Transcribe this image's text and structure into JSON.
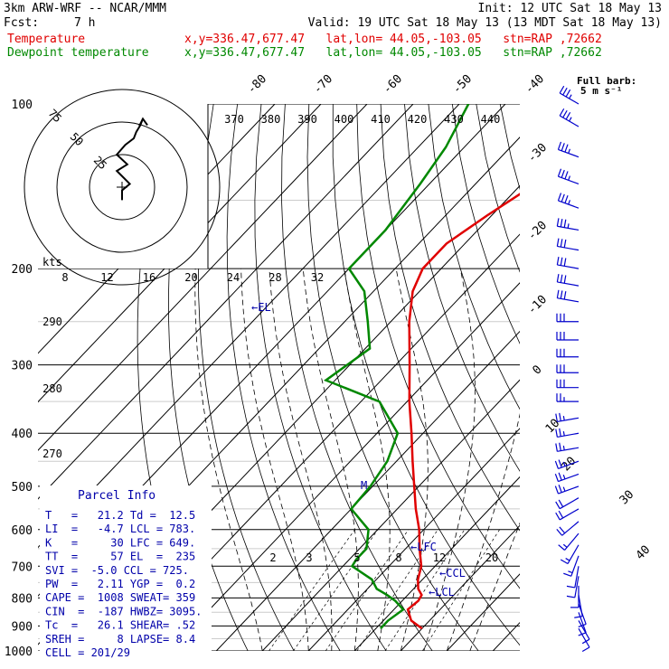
{
  "header": {
    "model": "3km ARW-WRF -- NCAR/MMM",
    "init": "Init: 12 UTC Sat 18 May 13",
    "fcst_label": "Fcst:",
    "fcst_value": "7 h",
    "valid": "Valid: 19 UTC Sat 18 May 13 (13 MDT Sat 18 May 13)",
    "temp_label": "Temperature",
    "dew_label": "Dewpoint temperature",
    "location": "x,y=336.47,677.47   lat,lon= 44.05,-103.05   stn=RAP ,72662"
  },
  "colors": {
    "temperature": "#e00000",
    "dewpoint": "#008800",
    "annot": "#0000aa",
    "barb": "#0000cc",
    "grid": "#000000"
  },
  "barb_legend": {
    "line1": "Full barb:",
    "line2": "5 m s⁻¹"
  },
  "hodo": {
    "kts_label": "kts",
    "ring_labels": [
      "25",
      "50",
      "75"
    ]
  },
  "annotations": {
    "el": "←EL",
    "lfc": "←LFC",
    "ccl": "←CCL",
    "lcl": "←LCL",
    "m": "M"
  },
  "parcel_info": {
    "title": "Parcel Info",
    "rows": [
      "T   =   21.2 Td =  12.5",
      "LI  =   -4.7 LCL = 783.",
      "K   =     30 LFC = 649.",
      "TT  =     57 EL  =  235",
      "SVI =  -5.0 CCL = 725.",
      "PW  =   2.11 YGP =  0.2",
      "CAPE =  1008 SWEAT= 359",
      "CIN  =  -187 HWBZ= 3095.",
      "Tc  =   26.1 SHEAR= .52",
      "SREH =     8 LAPSE= 8.4",
      "CELL = 201/29"
    ]
  },
  "chart_data": {
    "type": "line",
    "title": "",
    "xlabel": "",
    "ylabel": "",
    "pressure_ticks": [
      "100",
      "200",
      "300",
      "400",
      "500",
      "600",
      "700",
      "800",
      "900",
      "1000"
    ],
    "isotherm_labels": [
      "-80",
      "-70",
      "-60",
      "-50",
      "-40",
      "-30",
      "-20",
      "-10",
      "0",
      "10",
      "20",
      "30",
      "40"
    ],
    "theta_labels": [
      "370",
      "380",
      "390",
      "400",
      "410",
      "420",
      "430",
      "440"
    ],
    "theta_left_labels": [
      "290",
      "280",
      "270"
    ],
    "mixing_labels_upper": [
      "8",
      "12",
      "16",
      "20",
      "24",
      "28",
      "32"
    ],
    "mixing_labels_lower": [
      "2",
      "3",
      "5",
      "8",
      "12",
      "20"
    ],
    "series": [
      {
        "name": "Temperature",
        "p": [
          910,
          880,
          840,
          810,
          790,
          770,
          740,
          700,
          650,
          600,
          550,
          500,
          450,
          400,
          350,
          300,
          250,
          220,
          200,
          180,
          160,
          140,
          120,
          100
        ],
        "t": [
          20,
          16,
          13,
          13.5,
          13,
          11,
          9,
          7,
          3,
          -1,
          -6,
          -11,
          -16.5,
          -22.5,
          -29.5,
          -37,
          -46,
          -51.5,
          -54,
          -54,
          -51,
          -47,
          -43,
          -39
        ]
      },
      {
        "name": "Dewpoint temperature",
        "p": [
          910,
          880,
          840,
          810,
          790,
          770,
          740,
          700,
          680,
          650,
          600,
          550,
          500,
          450,
          400,
          350,
          320,
          280,
          250,
          220,
          200,
          170,
          140,
          120,
          100
        ],
        "t": [
          11,
          11,
          12,
          8.5,
          5.5,
          2,
          -1,
          -8,
          -8.5,
          -8.5,
          -12,
          -20,
          -20.5,
          -22,
          -25.5,
          -36,
          -52,
          -49,
          -55,
          -62,
          -70,
          -70,
          -72,
          -74,
          -78
        ]
      }
    ],
    "hodograph": {
      "u": [
        0,
        0,
        12,
        -8,
        8,
        -8,
        5,
        18,
        22,
        28,
        32
      ],
      "v": [
        -20,
        -5,
        5,
        25,
        35,
        50,
        65,
        75,
        85,
        95,
        105
      ]
    },
    "wind_barbs": {
      "p": [
        100,
        110,
        125,
        140,
        155,
        170,
        185,
        200,
        215,
        230,
        250,
        270,
        290,
        310,
        330,
        350,
        375,
        400,
        425,
        450,
        475,
        500,
        525,
        550,
        580,
        610,
        640,
        670,
        700,
        730,
        760,
        790,
        820,
        850,
        880,
        910
      ],
      "dir": [
        300,
        300,
        290,
        290,
        290,
        280,
        280,
        280,
        280,
        280,
        270,
        270,
        270,
        270,
        270,
        270,
        260,
        260,
        260,
        250,
        250,
        250,
        240,
        240,
        230,
        220,
        210,
        200,
        190,
        190,
        180,
        170,
        160,
        160,
        150,
        150
      ],
      "spd": [
        35,
        35,
        35,
        35,
        35,
        35,
        30,
        30,
        30,
        30,
        30,
        30,
        30,
        30,
        30,
        25,
        25,
        25,
        25,
        25,
        25,
        25,
        20,
        20,
        20,
        15,
        15,
        15,
        10,
        10,
        10,
        10,
        10,
        10,
        10,
        10
      ]
    }
  }
}
